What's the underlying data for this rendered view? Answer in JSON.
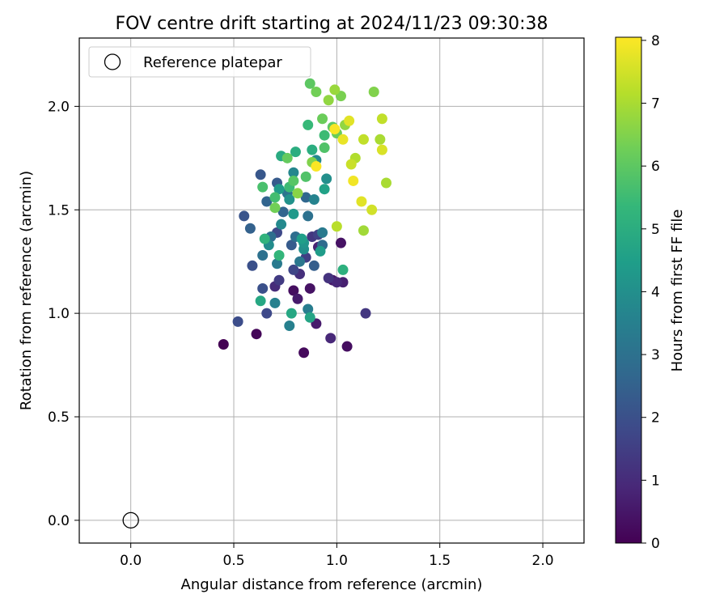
{
  "chart_data": {
    "type": "scatter",
    "title": "FOV centre drift starting at 2024/11/23 09:30:38",
    "xlabel": "Angular distance from reference (arcmin)",
    "ylabel": "Rotation from reference (arcmin)",
    "xlim": [
      -0.25,
      2.2
    ],
    "ylim": [
      -0.11,
      2.33
    ],
    "x_ticks": [
      0.0,
      0.5,
      1.0,
      1.5,
      2.0
    ],
    "x_tick_labels": [
      "0.0",
      "0.5",
      "1.0",
      "1.5",
      "2.0"
    ],
    "y_ticks": [
      0.0,
      0.5,
      1.0,
      1.5,
      2.0
    ],
    "y_tick_labels": [
      "0.0",
      "0.5",
      "1.0",
      "1.5",
      "2.0"
    ],
    "grid": true,
    "legend": {
      "placement": "top-left",
      "entries": [
        "Reference platepar"
      ]
    },
    "colorbar": {
      "label": "Hours from first FF file",
      "range": [
        0,
        8.05
      ],
      "ticks": [
        0,
        1,
        2,
        3,
        4,
        5,
        6,
        7,
        8
      ],
      "tick_labels": [
        "0",
        "1",
        "2",
        "3",
        "4",
        "5",
        "6",
        "7",
        "8"
      ],
      "colormap": [
        "#440154",
        "#482878",
        "#3e4989",
        "#31688e",
        "#26828e",
        "#1f9e89",
        "#35b779",
        "#6ece58",
        "#b5de2b",
        "#fde725"
      ]
    },
    "reference_point": {
      "x": 0.0,
      "y": 0.0,
      "style": "open-circle",
      "color": "#000000"
    },
    "series": [
      {
        "points": [
          [
            0.45,
            0.85,
            0.0
          ],
          [
            0.61,
            0.9,
            0.1
          ],
          [
            0.84,
            0.81,
            0.2
          ],
          [
            1.05,
            0.84,
            0.3
          ],
          [
            0.79,
            1.11,
            0.3
          ],
          [
            0.87,
            1.12,
            0.4
          ],
          [
            1.02,
            1.34,
            0.4
          ],
          [
            0.98,
            1.16,
            0.5
          ],
          [
            0.9,
            0.95,
            0.6
          ],
          [
            0.81,
            1.07,
            0.6
          ],
          [
            1.03,
            1.15,
            0.7
          ],
          [
            0.91,
            1.32,
            0.8
          ],
          [
            0.97,
            0.88,
            0.9
          ],
          [
            1.0,
            1.15,
            0.9
          ],
          [
            0.7,
            1.13,
            1.0
          ],
          [
            0.82,
            1.19,
            1.1
          ],
          [
            0.96,
            1.17,
            1.2
          ],
          [
            0.88,
            1.37,
            1.3
          ],
          [
            1.14,
            1.0,
            1.3
          ],
          [
            0.72,
            1.16,
            1.4
          ],
          [
            0.85,
            1.27,
            1.5
          ],
          [
            0.91,
            1.38,
            1.6
          ],
          [
            0.79,
            1.21,
            1.7
          ],
          [
            0.66,
            1.0,
            1.8
          ],
          [
            0.71,
            1.39,
            1.8
          ],
          [
            0.52,
            0.96,
            1.9
          ],
          [
            0.64,
            1.12,
            2.0
          ],
          [
            0.59,
            1.23,
            2.0
          ],
          [
            0.55,
            1.47,
            2.1
          ],
          [
            0.63,
            1.67,
            2.2
          ],
          [
            0.71,
            1.63,
            2.3
          ],
          [
            0.78,
            1.33,
            2.3
          ],
          [
            0.89,
            1.23,
            2.4
          ],
          [
            0.58,
            1.41,
            2.5
          ],
          [
            0.66,
            1.54,
            2.6
          ],
          [
            0.74,
            1.49,
            2.6
          ],
          [
            0.85,
            1.56,
            2.7
          ],
          [
            0.93,
            1.33,
            2.8
          ],
          [
            0.68,
            1.37,
            2.9
          ],
          [
            0.8,
            1.37,
            2.9
          ],
          [
            0.64,
            1.28,
            3.0
          ],
          [
            0.86,
            1.47,
            3.0
          ],
          [
            0.76,
            1.58,
            3.1
          ],
          [
            0.82,
            1.25,
            3.2
          ],
          [
            0.93,
            1.39,
            3.3
          ],
          [
            0.71,
            1.24,
            3.3
          ],
          [
            0.86,
            1.02,
            3.4
          ],
          [
            0.77,
            0.94,
            3.5
          ],
          [
            0.7,
            1.05,
            3.5
          ],
          [
            0.89,
            1.55,
            3.6
          ],
          [
            0.79,
            1.68,
            3.7
          ],
          [
            0.73,
            1.43,
            3.8
          ],
          [
            0.9,
            1.74,
            3.8
          ],
          [
            0.67,
            1.33,
            3.9
          ],
          [
            0.84,
            1.31,
            4.0
          ],
          [
            0.95,
            1.65,
            4.0
          ],
          [
            0.77,
            1.55,
            4.1
          ],
          [
            0.84,
            1.34,
            4.2
          ],
          [
            0.79,
            1.48,
            4.3
          ],
          [
            0.92,
            1.3,
            4.4
          ],
          [
            0.72,
            1.6,
            4.4
          ],
          [
            0.83,
            1.36,
            4.5
          ],
          [
            0.94,
            1.6,
            4.6
          ],
          [
            0.87,
            0.98,
            4.7
          ],
          [
            0.78,
            1.0,
            4.8
          ],
          [
            0.63,
            1.06,
            4.8
          ],
          [
            0.73,
            1.76,
            4.9
          ],
          [
            0.88,
            1.79,
            5.0
          ],
          [
            0.8,
            1.78,
            5.0
          ],
          [
            1.03,
            1.21,
            5.1
          ],
          [
            0.65,
            1.36,
            5.2
          ],
          [
            0.72,
            1.28,
            5.3
          ],
          [
            0.86,
            1.91,
            5.4
          ],
          [
            0.77,
            1.61,
            5.5
          ],
          [
            0.94,
            1.86,
            5.5
          ],
          [
            0.7,
            1.56,
            5.6
          ],
          [
            0.64,
            1.61,
            5.7
          ],
          [
            0.85,
            1.66,
            5.8
          ],
          [
            0.94,
            1.8,
            5.8
          ],
          [
            0.79,
            1.64,
            5.9
          ],
          [
            0.98,
            1.9,
            6.0
          ],
          [
            0.87,
            2.11,
            6.0
          ],
          [
            0.76,
            1.75,
            6.1
          ],
          [
            0.93,
            1.94,
            6.2
          ],
          [
            1.0,
            1.87,
            6.2
          ],
          [
            0.9,
            2.07,
            6.3
          ],
          [
            0.7,
            1.51,
            6.3
          ],
          [
            1.02,
            2.05,
            6.4
          ],
          [
            0.88,
            1.73,
            6.5
          ],
          [
            1.18,
            2.07,
            6.5
          ],
          [
            0.81,
            1.58,
            6.6
          ],
          [
            1.04,
            1.91,
            6.7
          ],
          [
            0.96,
            2.03,
            6.7
          ],
          [
            0.99,
            2.08,
            6.8
          ],
          [
            1.13,
            1.4,
            6.9
          ],
          [
            1.21,
            1.84,
            7.0
          ],
          [
            1.24,
            1.63,
            7.0
          ],
          [
            1.09,
            1.75,
            7.1
          ],
          [
            1.0,
            1.42,
            7.2
          ],
          [
            1.13,
            1.84,
            7.3
          ],
          [
            1.22,
            1.94,
            7.3
          ],
          [
            1.07,
            1.72,
            7.4
          ],
          [
            1.17,
            1.5,
            7.5
          ],
          [
            1.22,
            1.79,
            7.6
          ],
          [
            1.06,
            1.93,
            7.7
          ],
          [
            1.12,
            1.54,
            7.7
          ],
          [
            1.03,
            1.84,
            7.8
          ],
          [
            1.08,
            1.64,
            7.9
          ],
          [
            0.99,
            1.89,
            8.0
          ],
          [
            0.9,
            1.71,
            8.0
          ]
        ]
      }
    ]
  }
}
